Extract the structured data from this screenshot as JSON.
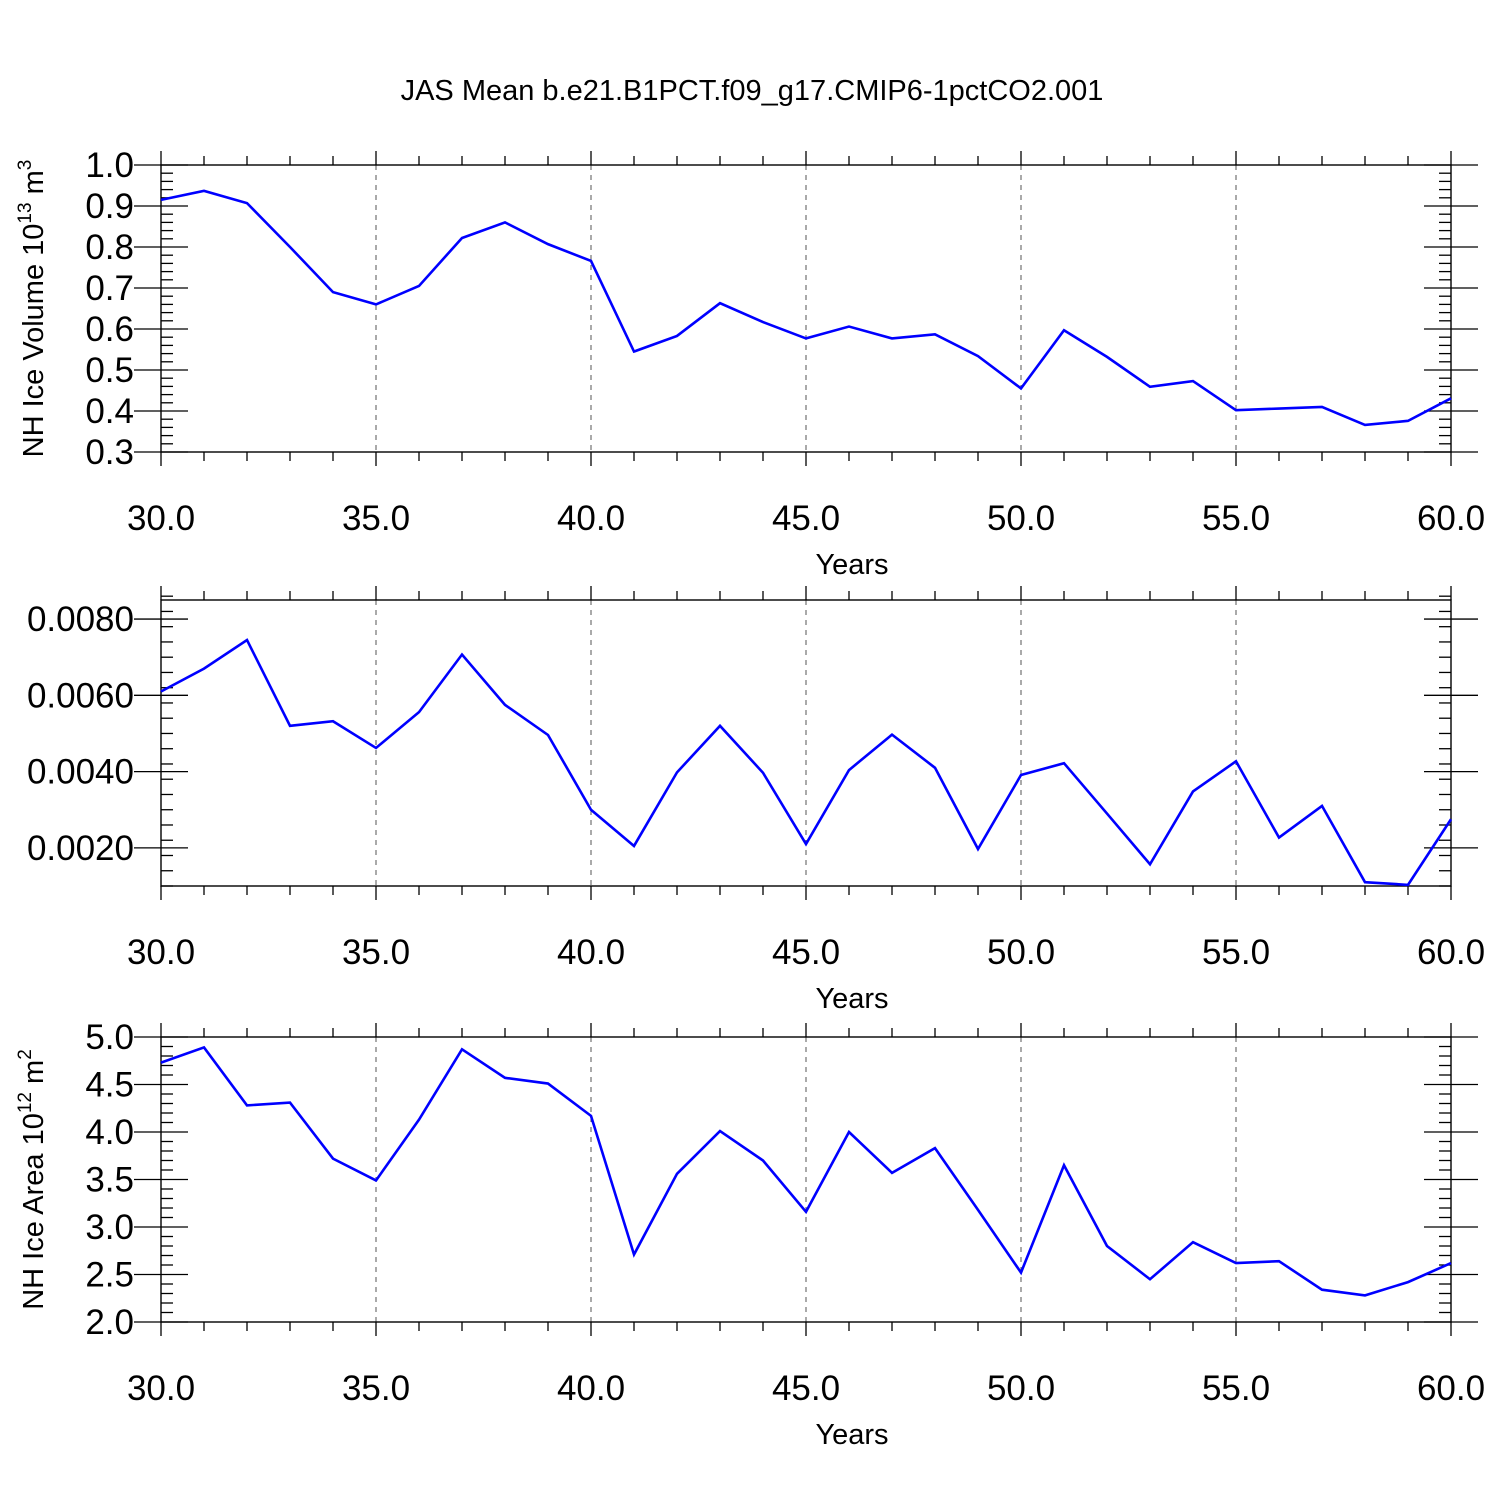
{
  "figure": {
    "title": "JAS Mean b.e21.B1PCT.f09_g17.CMIP6-1pctCO2.001",
    "line_color": "#0000ff"
  },
  "chart_data": [
    {
      "type": "line",
      "title": "",
      "xlabel": "Years",
      "ylabel": "NH Ice Volume 10",
      "ylabel_sup": "13",
      "ylabel_unit": " m",
      "ylabel_unit_sup": "3",
      "xlim": [
        30,
        60
      ],
      "ylim": [
        0.3,
        1.0
      ],
      "x_ticks": [
        30,
        35,
        40,
        45,
        50,
        55,
        60
      ],
      "x_tick_labels": [
        "30.0",
        "35.0",
        "40.0",
        "45.0",
        "50.0",
        "55.0",
        "60.0"
      ],
      "y_ticks": [
        0.3,
        0.4,
        0.5,
        0.6,
        0.7,
        0.8,
        0.9,
        1.0
      ],
      "y_tick_labels": [
        "0.3",
        "0.4",
        "0.5",
        "0.6",
        "0.7",
        "0.8",
        "0.9",
        "1.0"
      ],
      "y_minor_step": 0.02,
      "grid": "vertical dashed at major x ticks",
      "x": [
        30,
        31,
        32,
        33,
        34,
        35,
        36,
        37,
        38,
        39,
        40,
        41,
        42,
        43,
        44,
        45,
        46,
        47,
        48,
        49,
        50,
        51,
        52,
        53,
        54,
        55,
        56,
        57,
        58,
        59,
        60
      ],
      "values": [
        0.915,
        0.937,
        0.907,
        0.8,
        0.69,
        0.66,
        0.705,
        0.822,
        0.86,
        0.807,
        0.766,
        0.545,
        0.583,
        0.663,
        0.617,
        0.577,
        0.606,
        0.577,
        0.587,
        0.534,
        0.455,
        0.597,
        0.532,
        0.459,
        0.473,
        0.402,
        0.406,
        0.41,
        0.366,
        0.376,
        0.431
      ]
    },
    {
      "type": "line",
      "title": "",
      "xlabel": "Years",
      "ylabel": "",
      "xlim": [
        30,
        60
      ],
      "ylim": [
        0.001,
        0.0085
      ],
      "x_ticks": [
        30,
        35,
        40,
        45,
        50,
        55,
        60
      ],
      "x_tick_labels": [
        "30.0",
        "35.0",
        "40.0",
        "45.0",
        "50.0",
        "55.0",
        "60.0"
      ],
      "y_ticks": [
        0.002,
        0.004,
        0.006,
        0.008
      ],
      "y_tick_labels": [
        "0.0020",
        "0.0040",
        "0.0060",
        "0.0080"
      ],
      "y_minor_step": 0.0004,
      "grid": "vertical dashed at major x ticks",
      "x": [
        30,
        31,
        32,
        33,
        34,
        35,
        36,
        37,
        38,
        39,
        40,
        41,
        42,
        43,
        44,
        45,
        46,
        47,
        48,
        49,
        50,
        51,
        52,
        53,
        54,
        55,
        56,
        57,
        58,
        59,
        60
      ],
      "values": [
        0.0061,
        0.0067,
        0.00745,
        0.0052,
        0.00532,
        0.00462,
        0.00556,
        0.00707,
        0.00575,
        0.00496,
        0.003,
        0.00205,
        0.00398,
        0.0052,
        0.00397,
        0.0021,
        0.00404,
        0.00497,
        0.0041,
        0.00197,
        0.00391,
        0.00422,
        0.0029,
        0.00157,
        0.00348,
        0.00427,
        0.00227,
        0.0031,
        0.0011,
        0.00103,
        0.00275
      ]
    },
    {
      "type": "line",
      "title": "",
      "xlabel": "Years",
      "ylabel": "NH Ice Area 10",
      "ylabel_sup": "12",
      "ylabel_unit": " m",
      "ylabel_unit_sup": "2",
      "xlim": [
        30,
        60
      ],
      "ylim": [
        2.0,
        5.0
      ],
      "x_ticks": [
        30,
        35,
        40,
        45,
        50,
        55,
        60
      ],
      "x_tick_labels": [
        "30.0",
        "35.0",
        "40.0",
        "45.0",
        "50.0",
        "55.0",
        "60.0"
      ],
      "y_ticks": [
        2.0,
        2.5,
        3.0,
        3.5,
        4.0,
        4.5,
        5.0
      ],
      "y_tick_labels": [
        "2.0",
        "2.5",
        "3.0",
        "3.5",
        "4.0",
        "4.5",
        "5.0"
      ],
      "y_minor_step": 0.1,
      "grid": "vertical dashed at major x ticks",
      "x": [
        30,
        31,
        32,
        33,
        34,
        35,
        36,
        37,
        38,
        39,
        40,
        41,
        42,
        43,
        44,
        45,
        46,
        47,
        48,
        49,
        50,
        51,
        52,
        53,
        54,
        55,
        56,
        57,
        58,
        59,
        60
      ],
      "values": [
        4.73,
        4.89,
        4.28,
        4.31,
        3.72,
        3.49,
        4.13,
        4.87,
        4.57,
        4.51,
        4.17,
        2.71,
        3.56,
        4.01,
        3.7,
        3.16,
        4.0,
        3.57,
        3.83,
        3.18,
        2.52,
        3.65,
        2.8,
        2.45,
        2.84,
        2.62,
        2.64,
        2.34,
        2.28,
        2.42,
        2.62
      ]
    }
  ]
}
